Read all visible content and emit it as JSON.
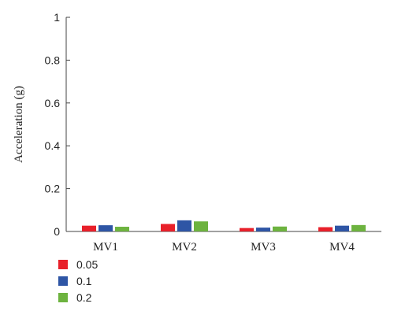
{
  "chart_data": {
    "type": "bar",
    "title": "",
    "xlabel": "",
    "ylabel": "Acceleration (g)",
    "ylim": [
      0,
      1
    ],
    "yticks": [
      "0",
      "0.2",
      "0.4",
      "0.6",
      "0.8",
      "1"
    ],
    "ytick_values": [
      0,
      0.2,
      0.4,
      0.6,
      0.8,
      1
    ],
    "grid": false,
    "legend_position": "bottom-left",
    "categories": [
      "MV1",
      "MV2",
      "MV3",
      "MV4"
    ],
    "series": [
      {
        "name": "0.05",
        "color": "#e8202a",
        "values": [
          0.027,
          0.035,
          0.016,
          0.02
        ]
      },
      {
        "name": "0.1",
        "color": "#2e55a5",
        "values": [
          0.029,
          0.052,
          0.018,
          0.027
        ]
      },
      {
        "name": "0.2",
        "color": "#6db33f",
        "values": [
          0.022,
          0.047,
          0.023,
          0.03
        ]
      }
    ]
  }
}
